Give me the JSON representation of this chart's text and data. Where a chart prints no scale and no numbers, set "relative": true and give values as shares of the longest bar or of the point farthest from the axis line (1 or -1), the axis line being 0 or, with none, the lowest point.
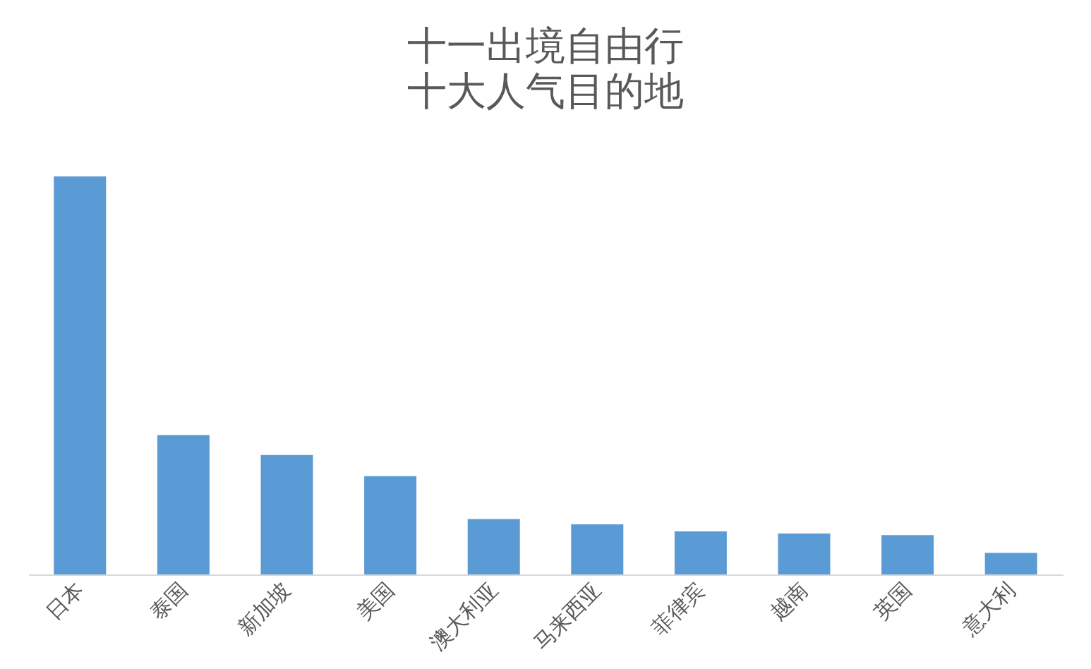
{
  "chart_data": {
    "type": "bar",
    "title": "十一出境自由行",
    "subtitle": "十大人气目的地",
    "relative": true,
    "color": "#5b9bd5",
    "categories": [
      "日本",
      "泰国",
      "新加坡",
      "美国",
      "澳大利亚",
      "马来西亚",
      "菲律宾",
      "越南",
      "英国",
      "意大利"
    ],
    "values": [
      1,
      0.35,
      0.3,
      0.247,
      0.139,
      0.126,
      0.108,
      0.103,
      0.099,
      0.054
    ]
  }
}
